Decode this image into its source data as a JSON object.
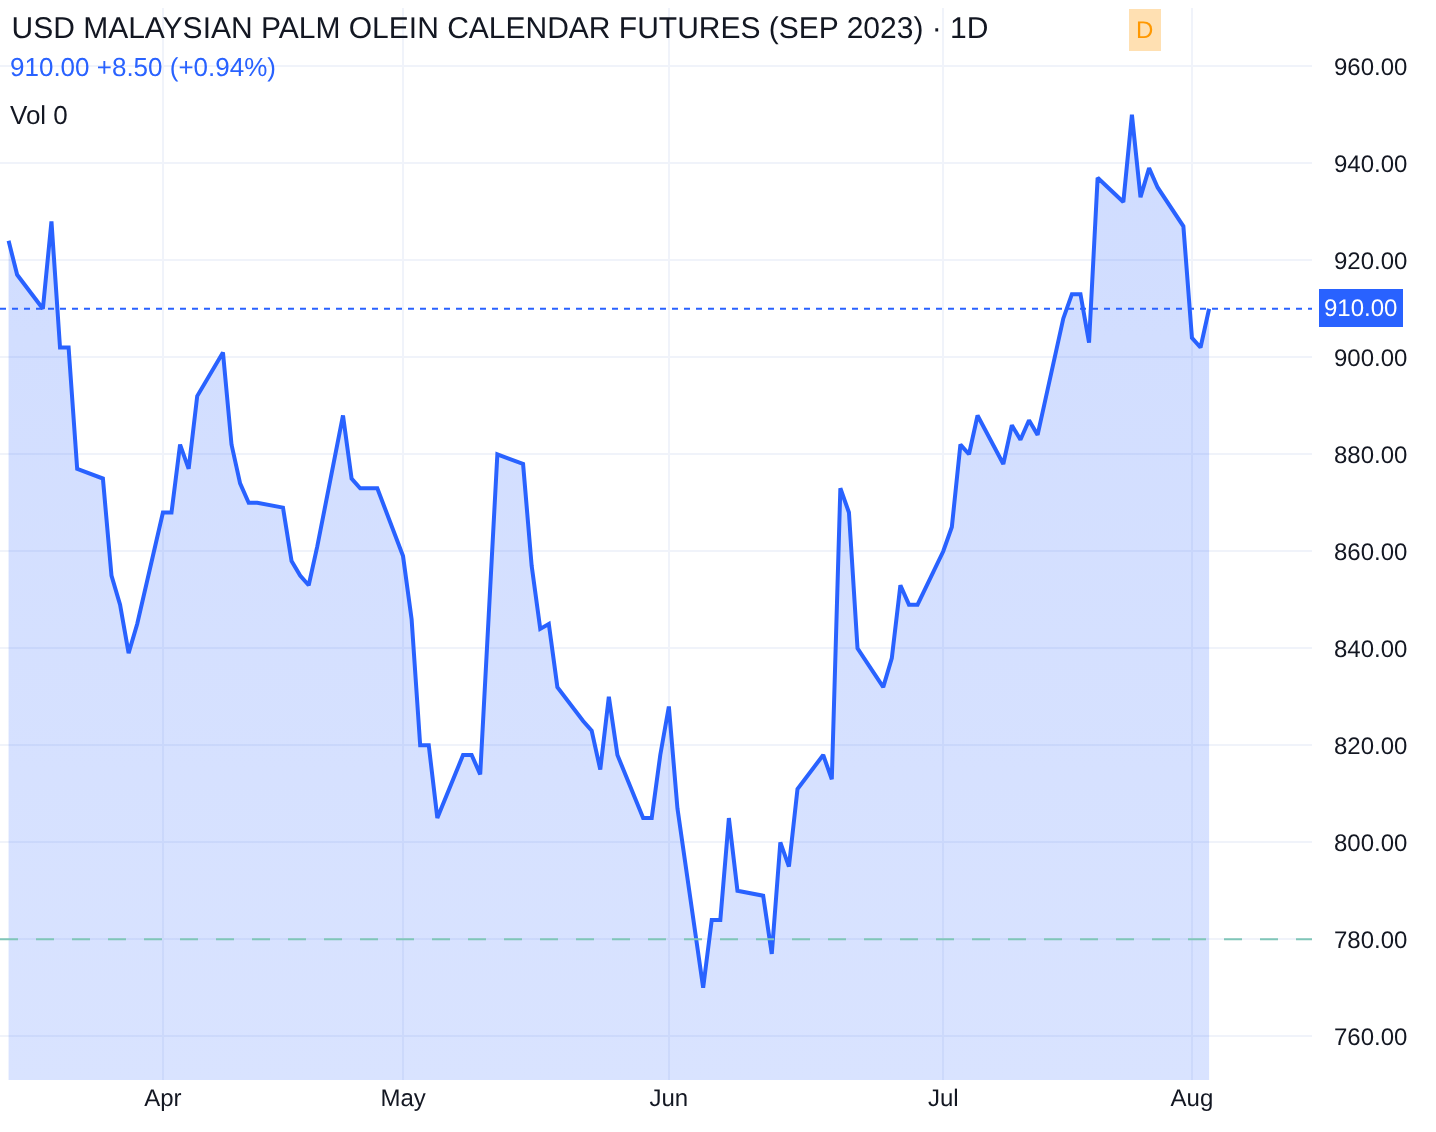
{
  "chart_data": {
    "type": "area",
    "title": "USD MALAYSIAN PALM OLEIN CALENDAR FUTURES (SEP 2023) · 1D",
    "subtitle": "910.00 +8.50 (+0.94%)",
    "annotations": [
      "Vol 0",
      "D"
    ],
    "x": [
      "2023-03-16",
      "2023-03-17",
      "2023-03-20",
      "2023-03-21",
      "2023-03-22",
      "2023-03-23",
      "2023-03-24",
      "2023-03-27",
      "2023-03-28",
      "2023-03-29",
      "2023-03-30",
      "2023-03-31",
      "2023-04-03",
      "2023-04-04",
      "2023-04-05",
      "2023-04-06",
      "2023-04-07",
      "2023-04-10",
      "2023-04-11",
      "2023-04-12",
      "2023-04-13",
      "2023-04-14",
      "2023-04-17",
      "2023-04-18",
      "2023-04-19",
      "2023-04-20",
      "2023-04-21",
      "2023-04-24",
      "2023-04-25",
      "2023-04-26",
      "2023-04-27",
      "2023-04-28",
      "2023-05-01",
      "2023-05-02",
      "2023-05-03",
      "2023-05-04",
      "2023-05-05",
      "2023-05-08",
      "2023-05-09",
      "2023-05-10",
      "2023-05-11",
      "2023-05-12",
      "2023-05-15",
      "2023-05-16",
      "2023-05-17",
      "2023-05-18",
      "2023-05-19",
      "2023-05-22",
      "2023-05-23",
      "2023-05-24",
      "2023-05-25",
      "2023-05-26",
      "2023-05-29",
      "2023-05-30",
      "2023-05-31",
      "2023-06-01",
      "2023-06-02",
      "2023-06-05",
      "2023-06-06",
      "2023-06-07",
      "2023-06-08",
      "2023-06-09",
      "2023-06-12",
      "2023-06-13",
      "2023-06-14",
      "2023-06-15",
      "2023-06-16",
      "2023-06-19",
      "2023-06-20",
      "2023-06-21",
      "2023-06-22",
      "2023-06-23",
      "2023-06-26",
      "2023-06-27",
      "2023-06-28",
      "2023-06-29",
      "2023-06-30",
      "2023-07-03",
      "2023-07-04",
      "2023-07-05",
      "2023-07-06",
      "2023-07-07",
      "2023-07-10",
      "2023-07-11",
      "2023-07-12",
      "2023-07-13",
      "2023-07-14",
      "2023-07-17",
      "2023-07-18",
      "2023-07-19",
      "2023-07-20",
      "2023-07-21",
      "2023-07-24",
      "2023-07-25",
      "2023-07-26",
      "2023-07-27",
      "2023-07-28",
      "2023-07-31",
      "2023-08-01",
      "2023-08-02",
      "2023-08-03"
    ],
    "series": [
      {
        "color": "#2962ff",
        "values": [
          924,
          917,
          910,
          928,
          902,
          902,
          877,
          875,
          855,
          849,
          839,
          845,
          868,
          868,
          882,
          877,
          892,
          901,
          882,
          874,
          870,
          870,
          869,
          858,
          855,
          853,
          861,
          888,
          875,
          873,
          873,
          873,
          859,
          846,
          820,
          820,
          805,
          818,
          818,
          814,
          847,
          880,
          878,
          857,
          844,
          845,
          832,
          825,
          823,
          815,
          830,
          818,
          805,
          805,
          818,
          828,
          807,
          770,
          784,
          784,
          805,
          790,
          789,
          777,
          800,
          795,
          811,
          818,
          813,
          873,
          868,
          840,
          832,
          838,
          853,
          849,
          849,
          860,
          865,
          882,
          880,
          888,
          878,
          886,
          883,
          887,
          884,
          908,
          913,
          913,
          903,
          937,
          932,
          950,
          933,
          939,
          935,
          927,
          904,
          902,
          910
        ]
      }
    ],
    "xlim": [
      "2023-03-15",
      "2023-08-15"
    ],
    "xticks": [
      {
        "value": "2023-04-03",
        "label": "Apr"
      },
      {
        "value": "2023-05-01",
        "label": "May"
      },
      {
        "value": "2023-06-01",
        "label": "Jun"
      },
      {
        "value": "2023-07-03",
        "label": "Jul"
      },
      {
        "value": "2023-08-01",
        "label": "Aug"
      }
    ],
    "ylim": [
      751,
      972
    ],
    "yticks": [
      {
        "value": 760,
        "label": "760.00"
      },
      {
        "value": 780,
        "label": "780.00"
      },
      {
        "value": 800,
        "label": "800.00"
      },
      {
        "value": 820,
        "label": "820.00"
      },
      {
        "value": 840,
        "label": "840.00"
      },
      {
        "value": 860,
        "label": "860.00"
      },
      {
        "value": 880,
        "label": "880.00"
      },
      {
        "value": 900,
        "label": "900.00"
      },
      {
        "value": 920,
        "label": "920.00"
      },
      {
        "value": 940,
        "label": "940.00"
      },
      {
        "value": 960,
        "label": "960.00"
      }
    ],
    "ref_lines": [
      {
        "axis": "y",
        "value": 910,
        "label": "910.00",
        "color": "#2962ff",
        "line_style": "dotted"
      },
      {
        "axis": "y",
        "value": 780,
        "color": "#80c6b8",
        "line_style": "dashed"
      }
    ],
    "grid": true,
    "legend": false
  }
}
